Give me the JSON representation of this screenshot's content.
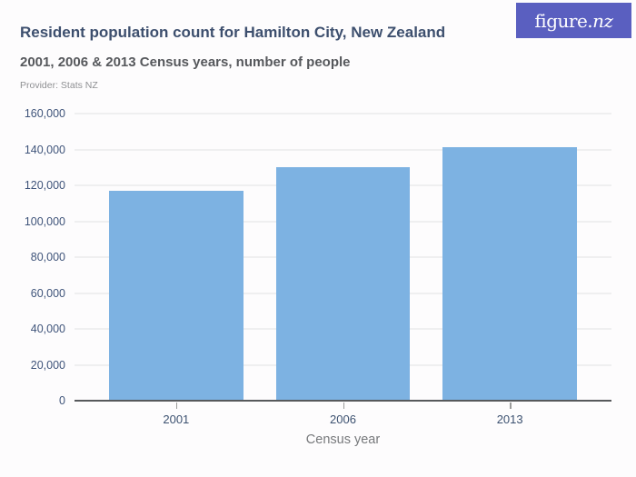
{
  "header": {
    "title": "Resident population count for Hamilton City, New Zealand",
    "subtitle": "2001, 2006 & 2013 Census years, number of people",
    "provider_label": "Provider: Stats NZ",
    "logo": {
      "main": "figure.",
      "suffix": "nz"
    }
  },
  "chart_data": {
    "type": "bar",
    "title": "Resident population count for Hamilton City, New Zealand",
    "subtitle": "2001, 2006 & 2013 Census years, number of people",
    "categories": [
      "2001",
      "2006",
      "2013"
    ],
    "values": [
      117000,
      130000,
      141500
    ],
    "xlabel": "Census year",
    "ylabel": "",
    "ylim": [
      0,
      160000
    ],
    "ytick_step": 20000,
    "ytick_labels": [
      "0",
      "20,000",
      "40,000",
      "60,000",
      "80,000",
      "100,000",
      "120,000",
      "140,000",
      "160,000"
    ],
    "grid": true,
    "legend": "none"
  },
  "colors": {
    "bar": "#7db2e2",
    "brand_purple": "#5a5fc0",
    "title_navy": "#3d4f6e",
    "axis_label_navy": "#3f547a",
    "gridline": "#efeff0",
    "axis_line": "#57595c"
  }
}
